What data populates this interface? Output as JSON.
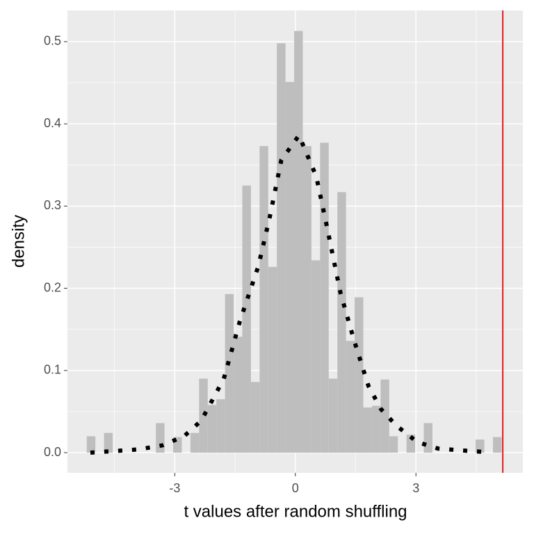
{
  "chart_data": {
    "type": "histogram",
    "x_label": "t values after random shuffling",
    "y_label": "density",
    "bins": [
      -5.19,
      -4.975,
      -4.76,
      -4.545,
      -4.33,
      -4.115,
      -3.9,
      -3.685,
      -3.47,
      -3.255,
      -3.04,
      -2.825,
      -2.61,
      -2.395,
      -2.18,
      -1.965,
      -1.75,
      -1.535,
      -1.32,
      -1.105,
      -0.89,
      -0.675,
      -0.46,
      -0.245,
      -0.03,
      0.185,
      0.4,
      0.615,
      0.83,
      1.045,
      1.26,
      1.475,
      1.69,
      1.905,
      2.12,
      2.335,
      2.55,
      2.765,
      2.98,
      3.195,
      3.41,
      3.625,
      3.84,
      4.055,
      4.27,
      4.485,
      4.7,
      4.915,
      5.13
    ],
    "values": [
      0.02,
      0,
      0.024,
      0,
      0,
      0,
      0,
      0,
      0.036,
      0,
      0.019,
      0,
      0.024,
      0.09,
      0.058,
      0.065,
      0.193,
      0.141,
      0.325,
      0.086,
      0.373,
      0.226,
      0.498,
      0.451,
      0.513,
      0.373,
      0.234,
      0.377,
      0.09,
      0.317,
      0.136,
      0.189,
      0.055,
      0.057,
      0.089,
      0.02,
      0,
      0.022,
      0,
      0.036,
      0,
      0,
      0,
      0,
      0,
      0.016,
      0,
      0.019
    ],
    "color": "#bebebe",
    "density": {
      "x": [
        -5.1,
        -4.5,
        -3.9,
        -3.3,
        -2.77,
        -2.34,
        -1.78,
        -1.38,
        -0.92,
        -0.64,
        -0.35,
        0.09,
        0.52,
        0.78,
        1.12,
        1.47,
        1.82,
        2.13,
        2.51,
        3.03,
        3.55,
        4.07,
        4.67
      ],
      "y": [
        0,
        0.002,
        0.004,
        0.009,
        0.02,
        0.039,
        0.09,
        0.16,
        0.227,
        0.286,
        0.356,
        0.386,
        0.336,
        0.276,
        0.195,
        0.135,
        0.081,
        0.053,
        0.033,
        0.013,
        0.005,
        0.003,
        0.001
      ],
      "color": "#000000"
    },
    "vline": {
      "x": 5.16,
      "color": "#e41a1c"
    },
    "xlim": [
      -5.67,
      5.66
    ],
    "ylim": [
      -0.0245,
      0.538
    ],
    "xticks": [
      -3,
      0,
      3
    ],
    "yticks": [
      {
        "value": 0,
        "label": "0.0"
      },
      0.1,
      0.2,
      0.3,
      0.4,
      0.5
    ],
    "xminor": [
      -4.5,
      -1.5,
      1.5,
      4.5
    ],
    "yminor": [
      0.05,
      0.15,
      0.25,
      0.35,
      0.45
    ],
    "grid": true
  }
}
